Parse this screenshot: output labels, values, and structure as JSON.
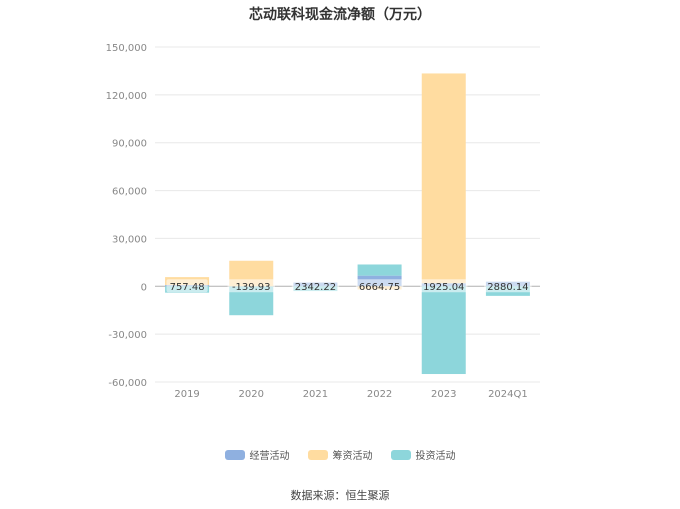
{
  "title": "芯动联科现金流净额（万元）",
  "source": "数据来源：恒生聚源",
  "colors": {
    "operating": "#8fb0e0",
    "financing": "#ffdca0",
    "investing": "#8dd6db",
    "grid": "#e8e8e8",
    "axis_text": "#888888"
  },
  "chart_data": {
    "type": "bar",
    "stacked": true,
    "categories": [
      "2019",
      "2020",
      "2021",
      "2022",
      "2023",
      "2024Q1"
    ],
    "series": [
      {
        "name": "经营活动",
        "key": "operating",
        "values": [
          757.48,
          -139.93,
          2342.22,
          6664.75,
          1925.04,
          2880.14
        ]
      },
      {
        "name": "筹资活动",
        "key": "financing",
        "values": [
          5000,
          16000,
          0,
          -2000,
          131500,
          0
        ]
      },
      {
        "name": "投资活动",
        "key": "investing",
        "values": [
          -4000,
          -18000,
          -3000,
          7000,
          -55000,
          -6000
        ]
      }
    ],
    "data_labels": [
      "757.48",
      "-139.93",
      "2342.22",
      "6664.75",
      "1925.04",
      "2880.14"
    ],
    "y_ticks": [
      "150,000",
      "120,000",
      "90,000",
      "60,000",
      "30,000",
      "0",
      "-30,000",
      "-60,000"
    ],
    "y_tick_values": [
      150000,
      120000,
      90000,
      60000,
      30000,
      0,
      -30000,
      -60000
    ],
    "ylim": [
      -60000,
      150000
    ],
    "grid": true,
    "legend_position": "bottom"
  }
}
